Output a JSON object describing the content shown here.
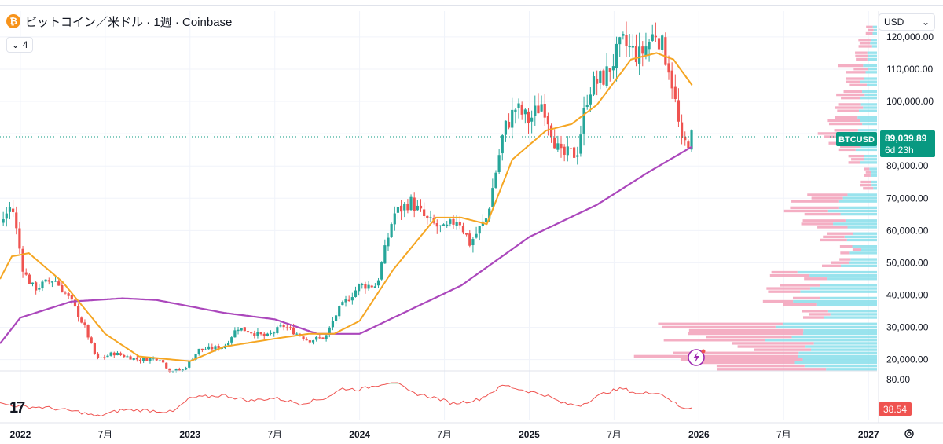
{
  "header": {
    "coin_symbol": "₿",
    "title": "ビットコイン／米ドル · 1週 · Coinbase",
    "indicator_count": "4"
  },
  "currency": {
    "selected": "USD"
  },
  "price_label": {
    "ticker": "BTCUSD",
    "price": "89,039.89",
    "countdown": "6d 23h"
  },
  "oscillator": {
    "level_label": "80.00",
    "current_label": "38.54",
    "current_value": 38.54
  },
  "colors": {
    "up": "#26a69a",
    "down": "#ef5350",
    "ma_fast": "#f5a623",
    "ma_slow": "#ab47bc",
    "vp_up": "#7fdce8",
    "vp_down": "#f2a0b8",
    "rsi": "#ef5350",
    "price_tag": "#089981"
  },
  "chart_data": {
    "type": "candlestick",
    "title": "ビットコイン／米ドル · 1週 · Coinbase",
    "x_ticks": [
      {
        "label": "2022",
        "t": 0
      },
      {
        "label": "7月",
        "t": 0.5
      },
      {
        "label": "2023",
        "t": 1
      },
      {
        "label": "7月",
        "t": 1.5
      },
      {
        "label": "2024",
        "t": 2
      },
      {
        "label": "7月",
        "t": 2.5
      },
      {
        "label": "2025",
        "t": 3
      },
      {
        "label": "7月",
        "t": 3.5
      },
      {
        "label": "2026",
        "t": 4
      },
      {
        "label": "7月",
        "t": 4.5
      },
      {
        "label": "2027",
        "t": 5
      }
    ],
    "y_ticks": [
      {
        "label": "120,000.00",
        "v": 120000
      },
      {
        "label": "110,000.00",
        "v": 110000
      },
      {
        "label": "100,000.00",
        "v": 100000
      },
      {
        "label": "90,000.00",
        "v": 90000
      },
      {
        "label": "80,000.00",
        "v": 80000
      },
      {
        "label": "70,000.00",
        "v": 70000
      },
      {
        "label": "60,000.00",
        "v": 60000
      },
      {
        "label": "50,000.00",
        "v": 50000
      },
      {
        "label": "40,000.00",
        "v": 40000
      },
      {
        "label": "30,000.00",
        "v": 30000
      },
      {
        "label": "20,000.00",
        "v": 20000
      }
    ],
    "ylim": [
      17000,
      128000
    ],
    "xlim_years": [
      -0.12,
      5.05
    ],
    "last_price": 89039.89,
    "price_anchors": [
      {
        "t": -0.12,
        "p": 62000
      },
      {
        "t": -0.05,
        "p": 68000
      },
      {
        "t": 0.02,
        "p": 47000
      },
      {
        "t": 0.08,
        "p": 42000
      },
      {
        "t": 0.2,
        "p": 45000
      },
      {
        "t": 0.3,
        "p": 38000
      },
      {
        "t": 0.38,
        "p": 30000
      },
      {
        "t": 0.45,
        "p": 20000
      },
      {
        "t": 0.55,
        "p": 22000
      },
      {
        "t": 0.7,
        "p": 20000
      },
      {
        "t": 0.82,
        "p": 20500
      },
      {
        "t": 0.88,
        "p": 16500
      },
      {
        "t": 0.96,
        "p": 16800
      },
      {
        "t": 1.05,
        "p": 23000
      },
      {
        "t": 1.2,
        "p": 24000
      },
      {
        "t": 1.28,
        "p": 30000
      },
      {
        "t": 1.45,
        "p": 27000
      },
      {
        "t": 1.55,
        "p": 30500
      },
      {
        "t": 1.7,
        "p": 26000
      },
      {
        "t": 1.8,
        "p": 27000
      },
      {
        "t": 1.87,
        "p": 35000
      },
      {
        "t": 2.0,
        "p": 43000
      },
      {
        "t": 2.1,
        "p": 43000
      },
      {
        "t": 2.2,
        "p": 65000
      },
      {
        "t": 2.3,
        "p": 69000
      },
      {
        "t": 2.4,
        "p": 63000
      },
      {
        "t": 2.5,
        "p": 60000
      },
      {
        "t": 2.58,
        "p": 64000
      },
      {
        "t": 2.65,
        "p": 56000
      },
      {
        "t": 2.75,
        "p": 64000
      },
      {
        "t": 2.85,
        "p": 91000
      },
      {
        "t": 2.92,
        "p": 98000
      },
      {
        "t": 3.0,
        "p": 94000
      },
      {
        "t": 3.08,
        "p": 100000
      },
      {
        "t": 3.18,
        "p": 83000
      },
      {
        "t": 3.28,
        "p": 84000
      },
      {
        "t": 3.35,
        "p": 104000
      },
      {
        "t": 3.45,
        "p": 108000
      },
      {
        "t": 3.55,
        "p": 118000
      },
      {
        "t": 3.65,
        "p": 114000
      },
      {
        "t": 3.75,
        "p": 122000
      },
      {
        "t": 3.83,
        "p": 110000
      },
      {
        "t": 3.9,
        "p": 86000
      },
      {
        "t": 3.96,
        "p": 89000
      }
    ],
    "ma_fast_anchors": [
      {
        "t": -0.12,
        "p": 45000
      },
      {
        "t": -0.05,
        "p": 52000
      },
      {
        "t": 0.05,
        "p": 53000
      },
      {
        "t": 0.25,
        "p": 44000
      },
      {
        "t": 0.5,
        "p": 28000
      },
      {
        "t": 0.7,
        "p": 21000
      },
      {
        "t": 1.0,
        "p": 19500
      },
      {
        "t": 1.2,
        "p": 24000
      },
      {
        "t": 1.5,
        "p": 26500
      },
      {
        "t": 1.7,
        "p": 28000
      },
      {
        "t": 1.85,
        "p": 28000
      },
      {
        "t": 2.0,
        "p": 32000
      },
      {
        "t": 2.2,
        "p": 48000
      },
      {
        "t": 2.45,
        "p": 64000
      },
      {
        "t": 2.6,
        "p": 64000
      },
      {
        "t": 2.75,
        "p": 62000
      },
      {
        "t": 2.9,
        "p": 82000
      },
      {
        "t": 3.1,
        "p": 91000
      },
      {
        "t": 3.25,
        "p": 93000
      },
      {
        "t": 3.4,
        "p": 99000
      },
      {
        "t": 3.6,
        "p": 113000
      },
      {
        "t": 3.75,
        "p": 115000
      },
      {
        "t": 3.85,
        "p": 113000
      },
      {
        "t": 3.96,
        "p": 105000
      }
    ],
    "ma_slow_anchors": [
      {
        "t": -0.12,
        "p": 25000
      },
      {
        "t": 0.0,
        "p": 33000
      },
      {
        "t": 0.3,
        "p": 38000
      },
      {
        "t": 0.6,
        "p": 39000
      },
      {
        "t": 0.8,
        "p": 38500
      },
      {
        "t": 1.2,
        "p": 34500
      },
      {
        "t": 1.5,
        "p": 32500
      },
      {
        "t": 1.75,
        "p": 28000
      },
      {
        "t": 2.0,
        "p": 28000
      },
      {
        "t": 2.2,
        "p": 33000
      },
      {
        "t": 2.6,
        "p": 43000
      },
      {
        "t": 3.0,
        "p": 58000
      },
      {
        "t": 3.4,
        "p": 68000
      },
      {
        "t": 3.7,
        "p": 78000
      },
      {
        "t": 3.96,
        "p": 86000
      }
    ],
    "volume_profile": [
      {
        "p": 122000,
        "up": 4,
        "down": 6
      },
      {
        "p": 118000,
        "up": 6,
        "down": 10
      },
      {
        "p": 114000,
        "up": 8,
        "down": 14
      },
      {
        "p": 110000,
        "up": 10,
        "down": 18
      },
      {
        "p": 106000,
        "up": 12,
        "down": 16
      },
      {
        "p": 102000,
        "up": 14,
        "down": 20
      },
      {
        "p": 98000,
        "up": 16,
        "down": 22
      },
      {
        "p": 94000,
        "up": 18,
        "down": 24
      },
      {
        "p": 90000,
        "up": 22,
        "down": 26
      },
      {
        "p": 86000,
        "up": 20,
        "down": 20
      },
      {
        "p": 82000,
        "up": 12,
        "down": 12
      },
      {
        "p": 78000,
        "up": 6,
        "down": 6
      },
      {
        "p": 74000,
        "up": 4,
        "down": 8
      },
      {
        "p": 70000,
        "up": 30,
        "down": 40
      },
      {
        "p": 66000,
        "up": 40,
        "down": 35
      },
      {
        "p": 62000,
        "up": 38,
        "down": 30
      },
      {
        "p": 58000,
        "up": 28,
        "down": 20
      },
      {
        "p": 54000,
        "up": 20,
        "down": 10
      },
      {
        "p": 50000,
        "up": 30,
        "down": 14
      },
      {
        "p": 46000,
        "up": 60,
        "down": 30
      },
      {
        "p": 42000,
        "up": 70,
        "down": 40
      },
      {
        "p": 38000,
        "up": 65,
        "down": 35
      },
      {
        "p": 34000,
        "up": 45,
        "down": 25
      },
      {
        "p": 30000,
        "up": 95,
        "down": 90
      },
      {
        "p": 27000,
        "up": 90,
        "down": 85
      },
      {
        "p": 24000,
        "up": 80,
        "down": 70
      },
      {
        "p": 21000,
        "up": 70,
        "down": 120
      },
      {
        "p": 18000,
        "up": 60,
        "down": 80
      }
    ],
    "rsi_anchors": [
      {
        "t": -0.12,
        "v": 45
      },
      {
        "t": 0.0,
        "v": 40
      },
      {
        "t": 0.15,
        "v": 38
      },
      {
        "t": 0.35,
        "v": 30
      },
      {
        "t": 0.45,
        "v": 22
      },
      {
        "t": 0.6,
        "v": 34
      },
      {
        "t": 0.75,
        "v": 33
      },
      {
        "t": 0.9,
        "v": 30
      },
      {
        "t": 1.0,
        "v": 55
      },
      {
        "t": 1.2,
        "v": 60
      },
      {
        "t": 1.35,
        "v": 50
      },
      {
        "t": 1.5,
        "v": 55
      },
      {
        "t": 1.65,
        "v": 45
      },
      {
        "t": 1.8,
        "v": 55
      },
      {
        "t": 1.9,
        "v": 72
      },
      {
        "t": 2.0,
        "v": 70
      },
      {
        "t": 2.1,
        "v": 78
      },
      {
        "t": 2.2,
        "v": 85
      },
      {
        "t": 2.3,
        "v": 65
      },
      {
        "t": 2.45,
        "v": 55
      },
      {
        "t": 2.55,
        "v": 45
      },
      {
        "t": 2.7,
        "v": 52
      },
      {
        "t": 2.85,
        "v": 78
      },
      {
        "t": 2.95,
        "v": 70
      },
      {
        "t": 3.1,
        "v": 60
      },
      {
        "t": 3.2,
        "v": 45
      },
      {
        "t": 3.3,
        "v": 42
      },
      {
        "t": 3.45,
        "v": 65
      },
      {
        "t": 3.55,
        "v": 72
      },
      {
        "t": 3.65,
        "v": 62
      },
      {
        "t": 3.75,
        "v": 66
      },
      {
        "t": 3.82,
        "v": 55
      },
      {
        "t": 3.9,
        "v": 36
      },
      {
        "t": 3.96,
        "v": 38.5
      }
    ],
    "rsi_levels": [
      80,
      20
    ]
  }
}
